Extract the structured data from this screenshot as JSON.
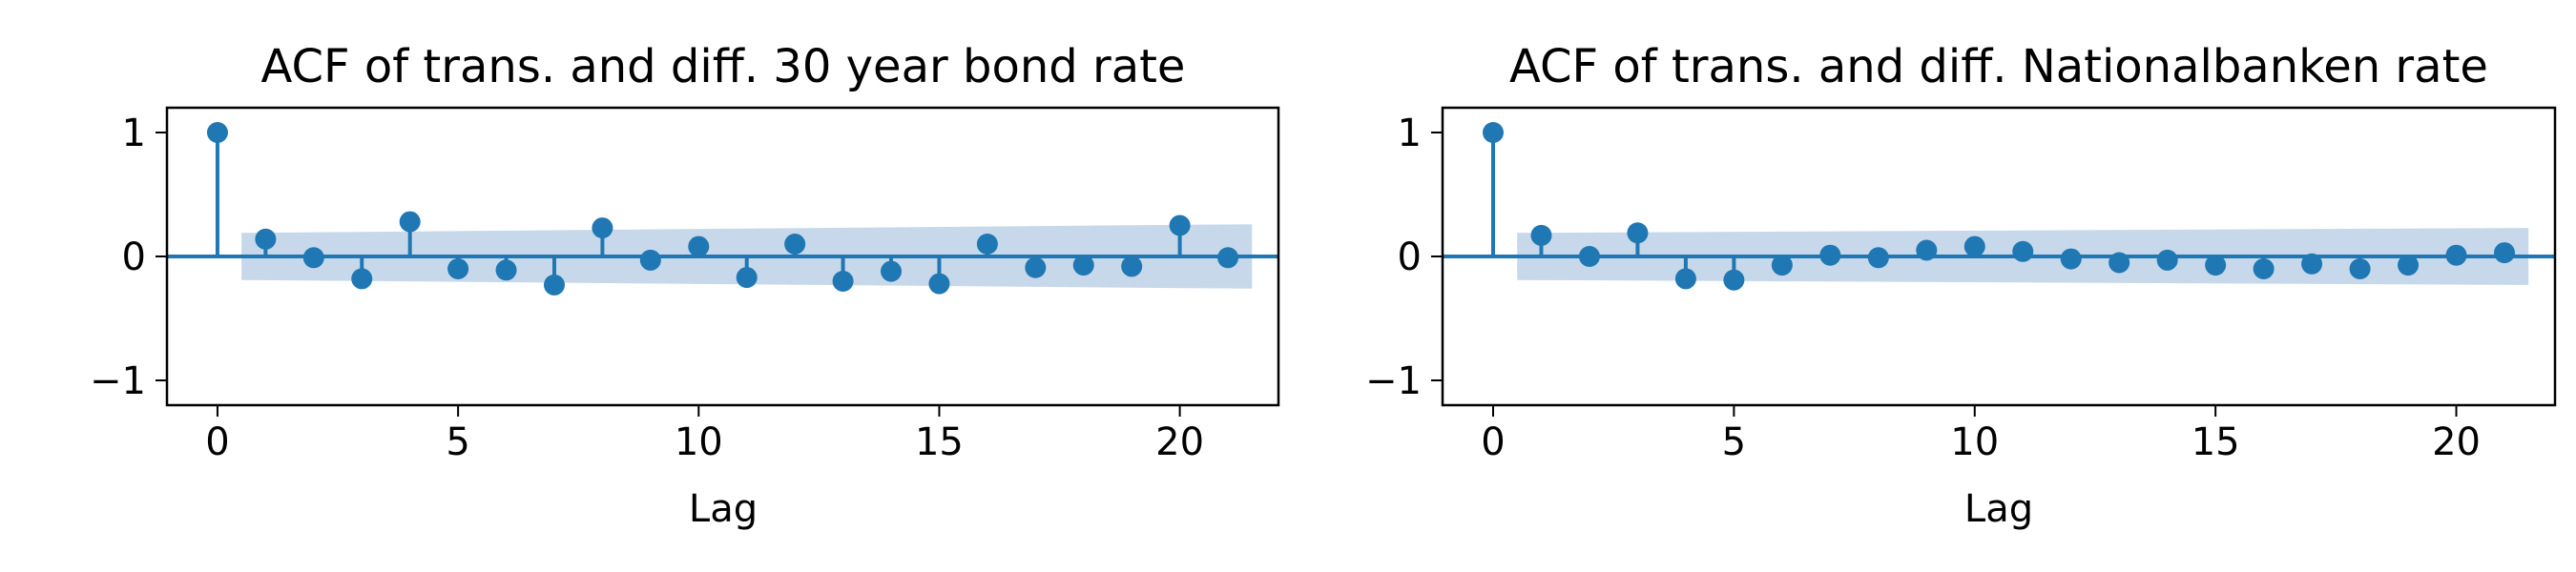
{
  "chart_data": [
    {
      "type": "stem",
      "title": "ACF of trans. and diff. 30 year bond rate",
      "xlabel": "Lag",
      "ylabel": "",
      "xlim": [
        -1.05,
        22.05
      ],
      "ylim": [
        -1.2,
        1.2
      ],
      "xticks": [
        0,
        5,
        10,
        15,
        20
      ],
      "yticks": [
        -1,
        0,
        1
      ],
      "ytick_labels": [
        "−1",
        "0",
        "1"
      ],
      "grid": false,
      "x": [
        0,
        1,
        2,
        3,
        4,
        5,
        6,
        7,
        8,
        9,
        10,
        11,
        12,
        13,
        14,
        15,
        16,
        17,
        18,
        19,
        20,
        21
      ],
      "values": [
        1.0,
        0.14,
        -0.01,
        -0.18,
        0.28,
        -0.1,
        -0.11,
        -0.23,
        0.23,
        -0.03,
        0.08,
        -0.17,
        0.1,
        -0.2,
        -0.12,
        -0.22,
        0.1,
        -0.09,
        -0.07,
        -0.08,
        0.25,
        -0.01
      ],
      "confint_x": [
        0.5,
        21.5
      ],
      "confint_upper": [
        0.19,
        0.26
      ],
      "confint_lower": [
        -0.19,
        -0.26
      ],
      "colors": {
        "series": "#1f77b4",
        "band": "#c6d8ea"
      }
    },
    {
      "type": "stem",
      "title": "ACF of trans. and diff. Nationalbanken rate",
      "xlabel": "Lag",
      "ylabel": "",
      "xlim": [
        -1.05,
        22.05
      ],
      "ylim": [
        -1.2,
        1.2
      ],
      "xticks": [
        0,
        5,
        10,
        15,
        20
      ],
      "yticks": [
        -1,
        0,
        1
      ],
      "ytick_labels": [
        "−1",
        "0",
        "1"
      ],
      "grid": false,
      "x": [
        0,
        1,
        2,
        3,
        4,
        5,
        6,
        7,
        8,
        9,
        10,
        11,
        12,
        13,
        14,
        15,
        16,
        17,
        18,
        19,
        20,
        21
      ],
      "values": [
        1.0,
        0.17,
        0.0,
        0.19,
        -0.18,
        -0.19,
        -0.07,
        0.01,
        -0.01,
        0.05,
        0.08,
        0.04,
        -0.02,
        -0.05,
        -0.03,
        -0.07,
        -0.1,
        -0.06,
        -0.1,
        -0.07,
        0.01,
        0.03
      ],
      "confint_x": [
        0.5,
        21.5
      ],
      "confint_upper": [
        0.19,
        0.23
      ],
      "confint_lower": [
        -0.19,
        -0.23
      ],
      "colors": {
        "series": "#1f77b4",
        "band": "#c6d8ea"
      }
    }
  ]
}
